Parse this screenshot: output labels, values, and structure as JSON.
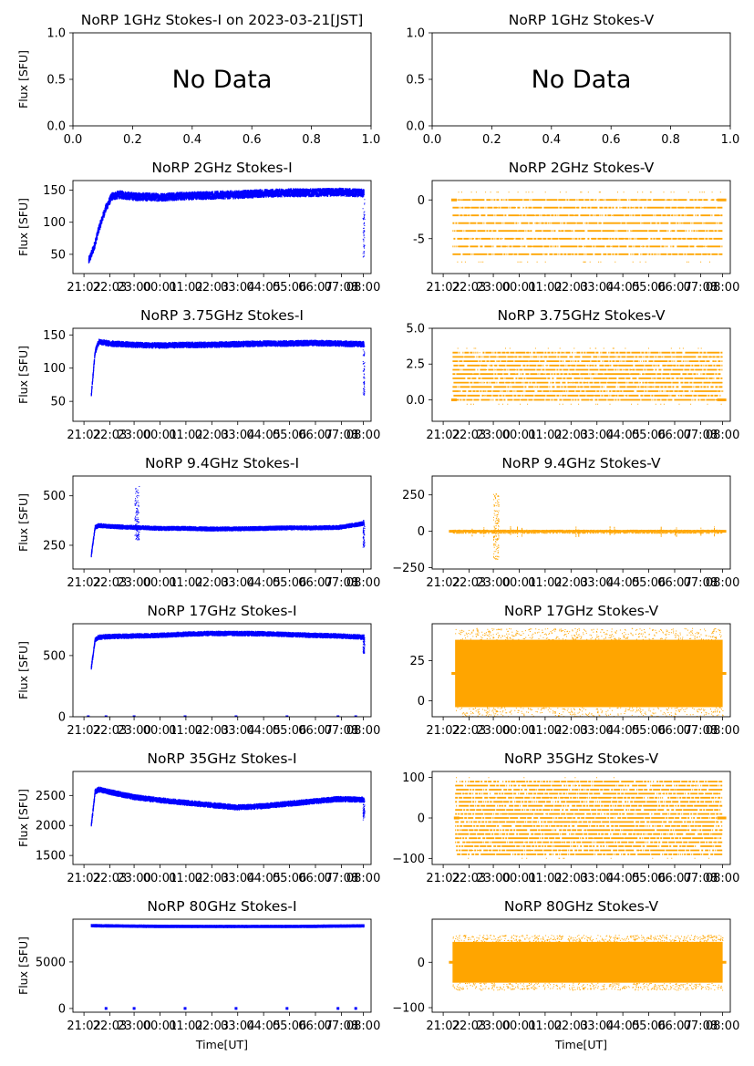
{
  "figure": {
    "xlabel": "Time[UT]",
    "ylabel": "Flux [SFU]"
  },
  "chart_data": [
    {
      "id": "p1",
      "type": "scatter",
      "title": "NoRP 1GHz Stokes-I on 2023-03-21[JST]",
      "ylabel": "Flux [SFU]",
      "xlabel": "",
      "empty": true,
      "message": "No Data",
      "xticks": [
        "0.0",
        "0.2",
        "0.4",
        "0.6",
        "0.8",
        "1.0"
      ],
      "yticks": [
        "0.0",
        "0.5",
        "1.0"
      ],
      "xlim": [
        0,
        1
      ],
      "ylim": [
        0,
        1
      ]
    },
    {
      "id": "p2",
      "type": "scatter",
      "title": "NoRP 1GHz Stokes-V",
      "ylabel": "",
      "xlabel": "",
      "empty": true,
      "message": "No Data",
      "xticks": [
        "0.0",
        "0.2",
        "0.4",
        "0.6",
        "0.8",
        "1.0"
      ],
      "yticks": [
        "0.0",
        "0.5",
        "1.0"
      ],
      "xlim": [
        0,
        1
      ],
      "ylim": [
        0,
        1
      ]
    },
    {
      "id": "p3",
      "type": "scatter",
      "title": "NoRP 2GHz Stokes-I",
      "ylabel": "Flux [SFU]",
      "xlabel": "",
      "color": "#0000ff",
      "kind": "I",
      "ylim": [
        20,
        165
      ],
      "yticks": [
        "50",
        "100",
        "150"
      ],
      "ytick_values": [
        50,
        100,
        150
      ],
      "xticks": [
        "21:02",
        "22:03",
        "23:00",
        "00:01",
        "01:02",
        "02:03",
        "03:04",
        "04:05",
        "05:06",
        "06:07",
        "07:08",
        "08:00"
      ],
      "xtick_hours": [
        21.033,
        22.05,
        23.0,
        24.017,
        25.033,
        26.05,
        27.067,
        28.083,
        29.1,
        30.117,
        31.133,
        32.0
      ],
      "xlim": [
        20.6,
        32.3
      ],
      "x": [
        21.2,
        21.4,
        21.6,
        21.85,
        22.1,
        22.4,
        23.0,
        24.0,
        25.0,
        26.0,
        27.0,
        28.0,
        29.0,
        30.0,
        31.0,
        31.7,
        32.0
      ],
      "y": [
        40,
        60,
        90,
        120,
        140,
        143,
        140,
        139,
        141,
        142,
        143,
        145,
        146,
        146,
        147,
        146,
        145
      ],
      "noise": 5,
      "spike_x": 32.0,
      "spike_range": [
        45,
        150
      ]
    },
    {
      "id": "p4",
      "type": "scatter",
      "title": "NoRP 2GHz Stokes-V",
      "ylabel": "",
      "xlabel": "",
      "color": "#ffa500",
      "kind": "V-levels",
      "ylim": [
        -9.5,
        2.5
      ],
      "yticks": [
        "-5",
        "0"
      ],
      "ytick_values": [
        -5,
        0
      ],
      "xticks": [
        "21:02",
        "22:03",
        "23:00",
        "00:01",
        "01:02",
        "02:03",
        "03:04",
        "04:05",
        "05:06",
        "06:07",
        "07:08",
        "08:00"
      ],
      "xtick_hours": [
        21.033,
        22.05,
        23.0,
        24.017,
        25.033,
        26.05,
        27.067,
        28.083,
        29.1,
        30.117,
        31.133,
        32.0
      ],
      "xlim": [
        20.6,
        32.3
      ],
      "levels": [
        -7,
        -6,
        -5,
        -4,
        -3,
        -2,
        -1,
        0
      ],
      "xrange": [
        21.4,
        32.0
      ],
      "baseline": 0
    },
    {
      "id": "p5",
      "type": "scatter",
      "title": "NoRP 3.75GHz Stokes-I",
      "ylabel": "Flux [SFU]",
      "xlabel": "",
      "color": "#0000ff",
      "kind": "I",
      "ylim": [
        20,
        160
      ],
      "yticks": [
        "50",
        "100",
        "150"
      ],
      "ytick_values": [
        50,
        100,
        150
      ],
      "xticks": [
        "21:02",
        "22:03",
        "23:00",
        "00:01",
        "01:02",
        "02:03",
        "03:04",
        "04:05",
        "05:06",
        "06:07",
        "07:08",
        "08:00"
      ],
      "xtick_hours": [
        21.033,
        22.05,
        23.0,
        24.017,
        25.033,
        26.05,
        27.067,
        28.083,
        29.1,
        30.117,
        31.133,
        32.0
      ],
      "xlim": [
        20.6,
        32.3
      ],
      "x": [
        21.3,
        21.45,
        21.6,
        22.0,
        23.0,
        24.0,
        25.0,
        26.0,
        27.0,
        28.0,
        29.0,
        30.0,
        31.0,
        32.0
      ],
      "y": [
        60,
        125,
        140,
        137,
        135,
        134,
        135,
        135,
        136,
        137,
        137,
        138,
        137,
        136
      ],
      "noise": 3,
      "spike_x": 32.0,
      "spike_range": [
        60,
        140
      ]
    },
    {
      "id": "p6",
      "type": "scatter",
      "title": "NoRP 3.75GHz Stokes-V",
      "ylabel": "",
      "xlabel": "",
      "color": "#ffa500",
      "kind": "V-levels",
      "ylim": [
        -1.5,
        5.0
      ],
      "yticks": [
        "0.0",
        "2.5",
        "5.0"
      ],
      "ytick_values": [
        0,
        2.5,
        5.0
      ],
      "xticks": [
        "21:02",
        "22:03",
        "23:00",
        "00:01",
        "01:02",
        "02:03",
        "03:04",
        "04:05",
        "05:06",
        "06:07",
        "07:08",
        "08:00"
      ],
      "xtick_hours": [
        21.033,
        22.05,
        23.0,
        24.017,
        25.033,
        26.05,
        27.067,
        28.083,
        29.1,
        30.117,
        31.133,
        32.0
      ],
      "xlim": [
        20.6,
        32.3
      ],
      "levels": [
        0,
        0.3,
        0.6,
        0.9,
        1.2,
        1.5,
        1.8,
        2.1,
        2.4,
        2.7,
        3.0,
        3.3
      ],
      "xrange": [
        21.4,
        32.0
      ],
      "baseline": 0
    },
    {
      "id": "p7",
      "type": "scatter",
      "title": "NoRP 9.4GHz Stokes-I",
      "ylabel": "Flux [SFU]",
      "xlabel": "",
      "color": "#0000ff",
      "kind": "I",
      "ylim": [
        130,
        600
      ],
      "yticks": [
        "250",
        "500"
      ],
      "ytick_values": [
        250,
        500
      ],
      "xticks": [
        "21:02",
        "22:03",
        "23:00",
        "00:01",
        "01:02",
        "02:03",
        "03:04",
        "04:05",
        "05:06",
        "06:07",
        "07:08",
        "08:00"
      ],
      "xtick_hours": [
        21.033,
        22.05,
        23.0,
        24.017,
        25.033,
        26.05,
        27.067,
        28.083,
        29.1,
        30.117,
        31.133,
        32.0
      ],
      "xlim": [
        20.6,
        32.3
      ],
      "x": [
        21.3,
        21.45,
        21.6,
        22.0,
        23.0,
        24.0,
        25.0,
        26.0,
        27.0,
        28.0,
        29.0,
        30.0,
        31.0,
        32.0
      ],
      "y": [
        200,
        340,
        350,
        345,
        340,
        335,
        335,
        332,
        333,
        335,
        338,
        338,
        340,
        360
      ],
      "noise": 6,
      "flare_x": 23.1,
      "flare_range": [
        280,
        550
      ],
      "spike_x": 32.0,
      "spike_range": [
        240,
        380
      ]
    },
    {
      "id": "p8",
      "type": "scatter",
      "title": "NoRP 9.4GHz Stokes-V",
      "ylabel": "",
      "xlabel": "",
      "color": "#ffa500",
      "kind": "V-band",
      "ylim": [
        -260,
        380
      ],
      "yticks": [
        "−250",
        "0",
        "250"
      ],
      "ytick_values": [
        -250,
        0,
        250
      ],
      "xticks": [
        "21:02",
        "22:03",
        "23:00",
        "00:01",
        "01:02",
        "02:03",
        "03:04",
        "04:05",
        "05:06",
        "06:07",
        "07:08",
        "08:00"
      ],
      "xtick_hours": [
        21.033,
        22.05,
        23.0,
        24.017,
        25.033,
        26.05,
        27.067,
        28.083,
        29.1,
        30.117,
        31.133,
        32.0
      ],
      "xlim": [
        20.6,
        32.3
      ],
      "xrange": [
        21.4,
        32.0
      ],
      "center": 0,
      "halfwidth": 8,
      "flare_x": 23.1,
      "flare_range": [
        -190,
        260
      ]
    },
    {
      "id": "p9",
      "type": "scatter",
      "title": "NoRP 17GHz Stokes-I",
      "ylabel": "Flux [SFU]",
      "xlabel": "",
      "color": "#0000ff",
      "kind": "I",
      "ylim": [
        0,
        760
      ],
      "yticks": [
        "0",
        "500"
      ],
      "ytick_values": [
        0,
        500
      ],
      "xticks": [
        "21:02",
        "22:03",
        "23:00",
        "00:01",
        "01:02",
        "02:03",
        "03:04",
        "04:05",
        "05:06",
        "06:07",
        "07:08",
        "08:00"
      ],
      "xtick_hours": [
        21.033,
        22.05,
        23.0,
        24.017,
        25.033,
        26.05,
        27.067,
        28.083,
        29.1,
        30.117,
        31.133,
        32.0
      ],
      "xlim": [
        20.6,
        32.3
      ],
      "x": [
        21.3,
        21.45,
        21.6,
        22.0,
        23.0,
        24.0,
        25.0,
        26.0,
        27.0,
        28.0,
        29.0,
        30.0,
        31.0,
        32.0
      ],
      "y": [
        400,
        630,
        650,
        655,
        660,
        665,
        675,
        680,
        680,
        678,
        672,
        665,
        660,
        650
      ],
      "noise": 12,
      "spike_x": 32.0,
      "spike_range": [
        520,
        660
      ],
      "zero_marks": [
        21.2,
        21.9,
        23.0,
        25.0,
        27.0,
        29.0,
        31.0,
        31.7
      ]
    },
    {
      "id": "p10",
      "type": "scatter",
      "title": "NoRP 17GHz Stokes-V",
      "ylabel": "",
      "xlabel": "",
      "color": "#ffa500",
      "kind": "V-band",
      "ylim": [
        -10,
        48
      ],
      "yticks": [
        "0",
        "25"
      ],
      "ytick_values": [
        0,
        25
      ],
      "xticks": [
        "21:02",
        "22:03",
        "23:00",
        "00:01",
        "01:02",
        "02:03",
        "03:04",
        "04:05",
        "05:06",
        "06:07",
        "07:08",
        "08:00"
      ],
      "xtick_hours": [
        21.033,
        22.05,
        23.0,
        24.017,
        25.033,
        26.05,
        27.067,
        28.083,
        29.1,
        30.117,
        31.133,
        32.0
      ],
      "xlim": [
        20.6,
        32.3
      ],
      "xrange": [
        21.5,
        32.0
      ],
      "center": 17,
      "halfwidth": 21
    },
    {
      "id": "p11",
      "type": "scatter",
      "title": "NoRP 35GHz Stokes-I",
      "ylabel": "Flux [SFU]",
      "xlabel": "",
      "color": "#0000ff",
      "kind": "I",
      "ylim": [
        1350,
        2900
      ],
      "yticks": [
        "1500",
        "2000",
        "2500"
      ],
      "ytick_values": [
        1500,
        2000,
        2500
      ],
      "xticks": [
        "21:02",
        "22:03",
        "23:00",
        "00:01",
        "01:02",
        "02:03",
        "03:04",
        "04:05",
        "05:06",
        "06:07",
        "07:08",
        "08:00"
      ],
      "xtick_hours": [
        21.033,
        22.05,
        23.0,
        24.017,
        25.033,
        26.05,
        27.067,
        28.083,
        29.1,
        30.117,
        31.133,
        32.0
      ],
      "xlim": [
        20.6,
        32.3
      ],
      "x": [
        21.3,
        21.45,
        21.6,
        22.0,
        23.0,
        24.0,
        25.0,
        26.0,
        27.0,
        28.0,
        29.0,
        30.0,
        31.0,
        32.0
      ],
      "y": [
        2000,
        2560,
        2600,
        2560,
        2470,
        2420,
        2380,
        2340,
        2300,
        2320,
        2360,
        2400,
        2440,
        2430
      ],
      "noise": 30,
      "spike_x": 32.0,
      "spike_range": [
        2100,
        2450
      ]
    },
    {
      "id": "p12",
      "type": "scatter",
      "title": "NoRP 35GHz Stokes-V",
      "ylabel": "",
      "xlabel": "",
      "color": "#ffa500",
      "kind": "V-levels",
      "ylim": [
        -115,
        115
      ],
      "yticks": [
        "−100",
        "0",
        "100"
      ],
      "ytick_values": [
        -100,
        0,
        100
      ],
      "xticks": [
        "21:02",
        "22:03",
        "23:00",
        "00:01",
        "01:02",
        "02:03",
        "03:04",
        "04:05",
        "05:06",
        "06:07",
        "07:08",
        "08:00"
      ],
      "xtick_hours": [
        21.033,
        22.05,
        23.0,
        24.017,
        25.033,
        26.05,
        27.067,
        28.083,
        29.1,
        30.117,
        31.133,
        32.0
      ],
      "xlim": [
        20.6,
        32.3
      ],
      "levels": [
        -90,
        -80,
        -70,
        -60,
        -50,
        -40,
        -30,
        -20,
        -10,
        0,
        10,
        20,
        30,
        40,
        50,
        60,
        70,
        80,
        90
      ],
      "xrange": [
        21.5,
        32.0
      ],
      "baseline": 0
    },
    {
      "id": "p13",
      "type": "scatter",
      "title": "NoRP 80GHz Stokes-I",
      "ylabel": "Flux [SFU]",
      "xlabel": "Time[UT]",
      "color": "#0000ff",
      "kind": "I",
      "ylim": [
        -400,
        9600
      ],
      "yticks": [
        "0",
        "5000"
      ],
      "ytick_values": [
        0,
        5000
      ],
      "xticks": [
        "21:02",
        "22:03",
        "23:00",
        "00:01",
        "01:02",
        "02:03",
        "03:04",
        "04:05",
        "05:06",
        "06:07",
        "07:08",
        "08:00"
      ],
      "xtick_hours": [
        21.033,
        22.05,
        23.0,
        24.017,
        25.033,
        26.05,
        27.067,
        28.083,
        29.1,
        30.117,
        31.133,
        32.0
      ],
      "xlim": [
        20.6,
        32.3
      ],
      "x": [
        21.3,
        22.0,
        23.0,
        24.0,
        25.0,
        26.0,
        27.0,
        28.0,
        29.0,
        30.0,
        31.0,
        32.0
      ],
      "y": [
        8900,
        8880,
        8850,
        8830,
        8820,
        8820,
        8820,
        8820,
        8820,
        8830,
        8860,
        8880
      ],
      "noise": 40,
      "zero_marks": [
        21.9,
        23.0,
        25.0,
        27.0,
        29.0,
        31.0,
        31.7
      ]
    },
    {
      "id": "p14",
      "type": "scatter",
      "title": "NoRP 80GHz Stokes-V",
      "ylabel": "",
      "xlabel": "Time[UT]",
      "color": "#ffa500",
      "kind": "V-band",
      "ylim": [
        -110,
        95
      ],
      "yticks": [
        "−100",
        "0"
      ],
      "ytick_values": [
        -100,
        0
      ],
      "xticks": [
        "21:02",
        "22:03",
        "23:00",
        "00:01",
        "01:02",
        "02:03",
        "03:04",
        "04:05",
        "05:06",
        "06:07",
        "07:08",
        "08:00"
      ],
      "xtick_hours": [
        21.033,
        22.05,
        23.0,
        24.017,
        25.033,
        26.05,
        27.067,
        28.083,
        29.1,
        30.117,
        31.133,
        32.0
      ],
      "xlim": [
        20.6,
        32.3
      ],
      "xrange": [
        21.4,
        32.0
      ],
      "center": 0,
      "halfwidth": 45
    }
  ]
}
